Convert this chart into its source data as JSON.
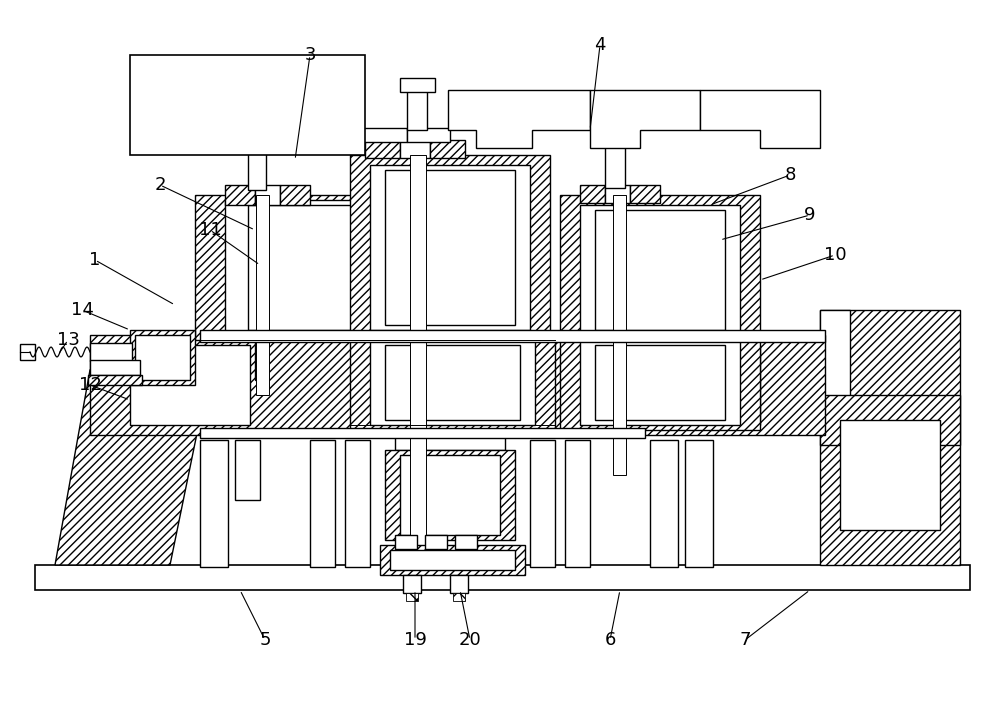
{
  "bg_color": "#ffffff",
  "lw": 1.0,
  "fig_width": 10.0,
  "fig_height": 7.02,
  "dpi": 100,
  "labels": [
    [
      "3",
      310,
      55,
      295,
      160
    ],
    [
      "4",
      600,
      45,
      590,
      130
    ],
    [
      "2",
      160,
      185,
      255,
      230
    ],
    [
      "1",
      95,
      260,
      175,
      305
    ],
    [
      "14",
      82,
      310,
      130,
      330
    ],
    [
      "13",
      68,
      340,
      58,
      355
    ],
    [
      "12",
      90,
      385,
      130,
      400
    ],
    [
      "11",
      210,
      230,
      260,
      265
    ],
    [
      "8",
      790,
      175,
      710,
      205
    ],
    [
      "9",
      810,
      215,
      720,
      240
    ],
    [
      "10",
      835,
      255,
      760,
      280
    ],
    [
      "5",
      265,
      640,
      240,
      590
    ],
    [
      "19",
      415,
      640,
      415,
      590
    ],
    [
      "20",
      470,
      640,
      460,
      590
    ],
    [
      "6",
      610,
      640,
      620,
      590
    ],
    [
      "7",
      745,
      640,
      810,
      590
    ]
  ],
  "label_fontsize": 13
}
